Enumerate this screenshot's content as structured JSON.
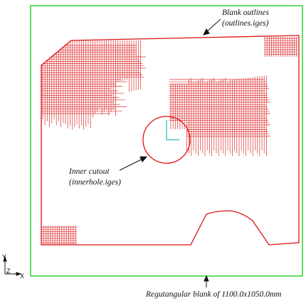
{
  "colors": {
    "blank": "#22cc22",
    "outline": "#dd1111",
    "hatch": "#e03030",
    "axes": "#22bbbb",
    "text": "#111111"
  },
  "labels": {
    "blank_outlines_1": "Blank outlines",
    "blank_outlines_2": "(outlines.iges)",
    "inner_cutout_1": "Inner cutout",
    "inner_cutout_2": "(innerhole.iges)",
    "rect_blank": "Regutangular blank of  1100.0x1050.0mm"
  },
  "axes": {
    "y": "Y",
    "z": "Z",
    "x": "X"
  }
}
